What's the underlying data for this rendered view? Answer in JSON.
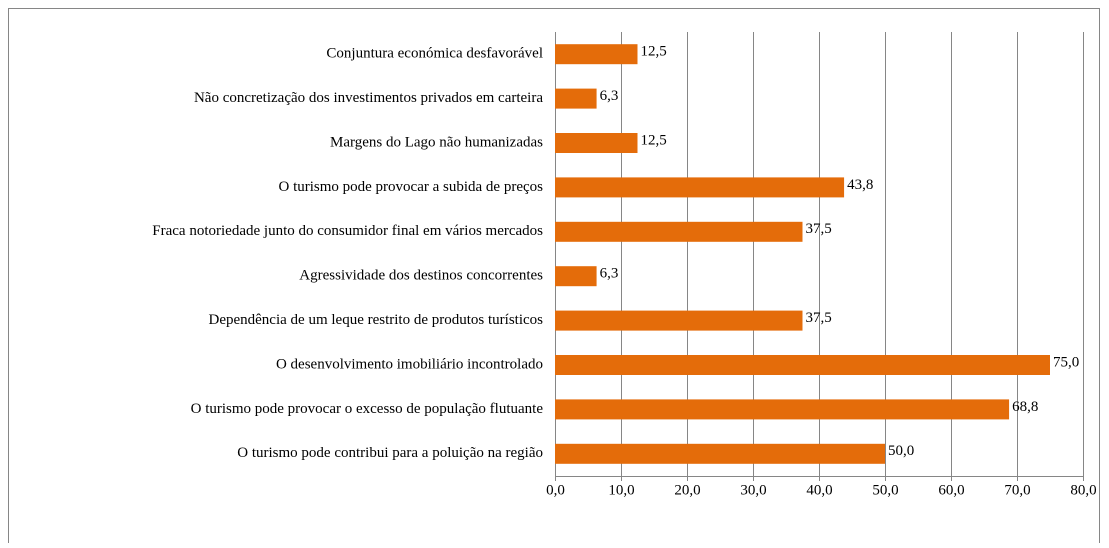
{
  "chart_data": {
    "type": "barh",
    "categories": [
      "Conjuntura económica desfavorável",
      "Não concretização dos investimentos privados em carteira",
      "Margens do Lago não humanizadas",
      "O turismo pode provocar a subida de preços",
      "Fraca notoriedade junto do consumidor final em vários mercados",
      "Agressividade dos destinos concorrentes",
      "Dependência de um leque restrito de produtos turísticos",
      "O desenvolvimento imobiliário incontrolado",
      "O turismo pode provocar o excesso de população flutuante",
      "O turismo pode contribui para a poluição na região"
    ],
    "values": [
      12.5,
      6.3,
      12.5,
      43.8,
      37.5,
      6.3,
      37.5,
      75.0,
      68.8,
      50.0
    ],
    "value_labels": [
      "12,5",
      "6,3",
      "12,5",
      "43,8",
      "37,5",
      "6,3",
      "37,5",
      "75,0",
      "68,8",
      "50,0"
    ],
    "color": "#e46c0a",
    "xlim": [
      0,
      80
    ],
    "xticks": [
      {
        "value": 0,
        "label": "0,0"
      },
      {
        "value": 10,
        "label": "10,0"
      },
      {
        "value": 20,
        "label": "20,0"
      },
      {
        "value": 30,
        "label": "30,0"
      },
      {
        "value": 40,
        "label": "40,0"
      },
      {
        "value": 50,
        "label": "50,0"
      },
      {
        "value": 60,
        "label": "60,0"
      },
      {
        "value": 70,
        "label": "70,0"
      },
      {
        "value": 80,
        "label": "80,0"
      }
    ],
    "grid": true
  }
}
